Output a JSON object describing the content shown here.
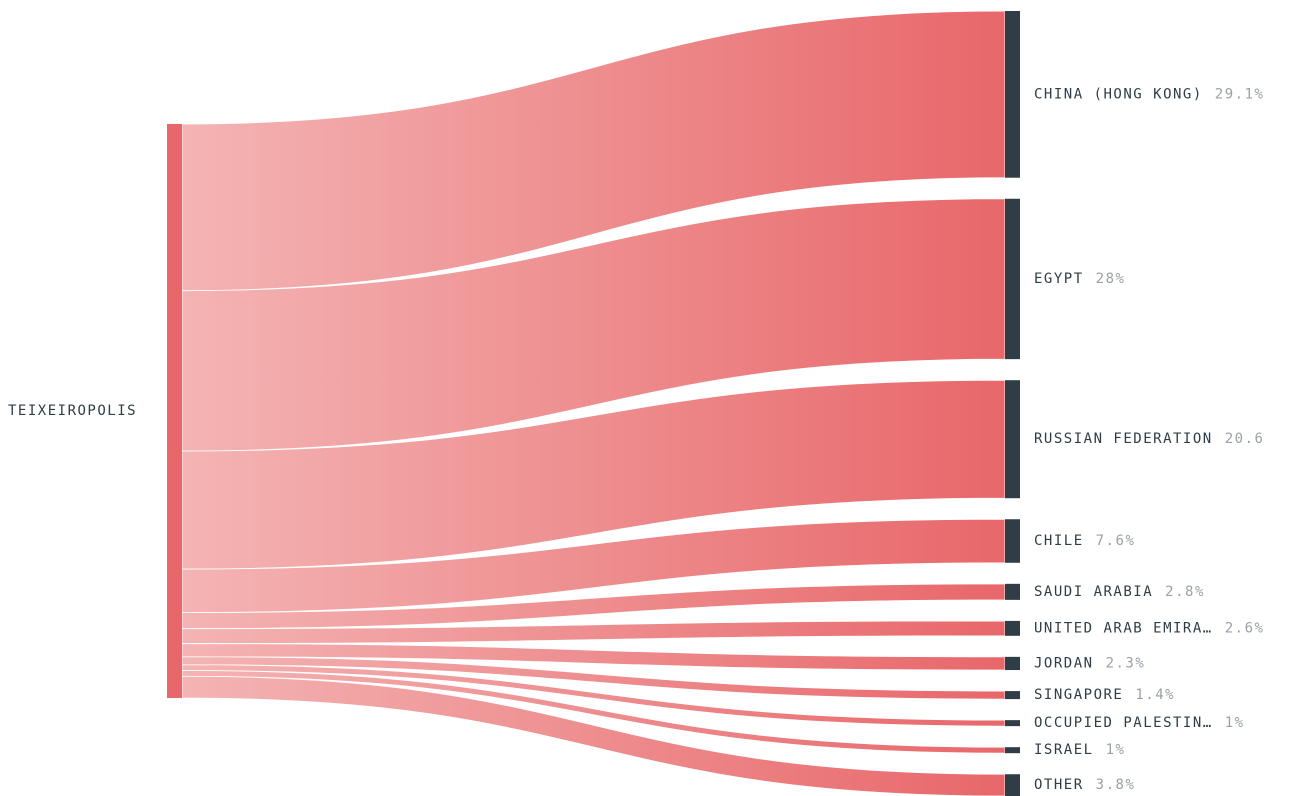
{
  "chart_data": {
    "type": "sankey",
    "source": {
      "name": "TEIXEIROPOLIS",
      "color": "#e8676a"
    },
    "targets": [
      {
        "name": "CHINA (HONG KONG)",
        "share": 29.1,
        "pct_label": "29.1%"
      },
      {
        "name": "EGYPT",
        "share": 28.0,
        "pct_label": "28%"
      },
      {
        "name": "RUSSIAN FEDERATION",
        "share": 20.6,
        "pct_label": "20.6"
      },
      {
        "name": "CHILE",
        "share": 7.6,
        "pct_label": "7.6%"
      },
      {
        "name": "SAUDI ARABIA",
        "share": 2.8,
        "pct_label": "2.8%"
      },
      {
        "name": "UNITED ARAB EMIRA…",
        "share": 2.6,
        "pct_label": "2.6%"
      },
      {
        "name": "JORDAN",
        "share": 2.3,
        "pct_label": "2.3%"
      },
      {
        "name": "SINGAPORE",
        "share": 1.4,
        "pct_label": "1.4%"
      },
      {
        "name": "OCCUPIED PALESTIN…",
        "share": 1.0,
        "pct_label": "1%"
      },
      {
        "name": "ISRAEL",
        "share": 1.0,
        "pct_label": "1%"
      },
      {
        "name": "OTHER",
        "share": 3.8,
        "pct_label": "3.8%"
      }
    ],
    "colors": {
      "link_start": "#f4b4b4",
      "link_end": "#e8676a",
      "target_node": "#2f3d47",
      "label_text": "#2f3d47",
      "pct_text": "#9aa1a6"
    }
  }
}
